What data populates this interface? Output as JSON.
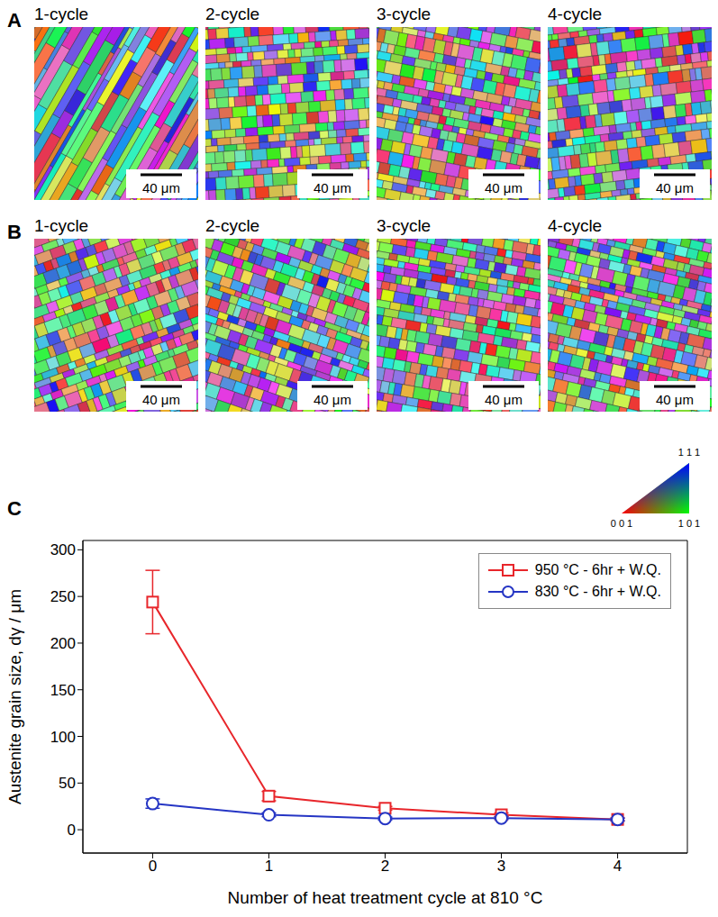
{
  "figure": {
    "panels": [
      {
        "letter": "A",
        "maps": [
          {
            "label": "1-cycle",
            "scale_bar": "40 μm"
          },
          {
            "label": "2-cycle",
            "scale_bar": "40 μm"
          },
          {
            "label": "3-cycle",
            "scale_bar": "40 μm"
          },
          {
            "label": "4-cycle",
            "scale_bar": "40 μm"
          }
        ]
      },
      {
        "letter": "B",
        "maps": [
          {
            "label": "1-cycle",
            "scale_bar": "40 μm"
          },
          {
            "label": "2-cycle",
            "scale_bar": "40 μm"
          },
          {
            "label": "3-cycle",
            "scale_bar": "40 μm"
          },
          {
            "label": "4-cycle",
            "scale_bar": "40 μm"
          }
        ]
      }
    ],
    "chart_letter": "C",
    "color_key": {
      "corners": [
        "0 0 1",
        "1 0 1",
        "1 1 1"
      ]
    }
  },
  "chart_data": {
    "type": "line",
    "x_label": "Number of heat treatment cycle at 810 °C",
    "y_label": "Austenite grain size, dγ / μm",
    "x": [
      0,
      1,
      2,
      3,
      4
    ],
    "series": [
      {
        "name": "950 °C - 6hr + W.Q.",
        "color": "#e8262b",
        "marker": "square",
        "values": [
          244,
          36,
          23,
          16,
          11
        ],
        "errors": [
          34,
          5,
          2,
          2,
          1.5
        ]
      },
      {
        "name": "830 °C - 6hr + W.Q.",
        "color": "#2535c4",
        "marker": "circle",
        "values": [
          28,
          16,
          12,
          12.5,
          11
        ],
        "errors": [
          5,
          2,
          1.5,
          1.5,
          1.5
        ]
      }
    ],
    "xlim": [
      -0.6,
      4.6
    ],
    "xticks": [
      0,
      1,
      2,
      3,
      4
    ],
    "ylim": [
      -25,
      310
    ],
    "yticks": [
      0,
      50,
      100,
      150,
      200,
      250,
      300
    ],
    "legend": "upper right",
    "grid": false
  }
}
